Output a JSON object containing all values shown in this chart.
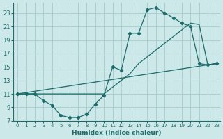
{
  "xlabel": "Humidex (Indice chaleur)",
  "bg_color": "#cce8e8",
  "grid_color": "#aacece",
  "line_color": "#1a6b6b",
  "xlim_min": -0.5,
  "xlim_max": 23.4,
  "ylim_min": 7,
  "ylim_max": 24.5,
  "xticks": [
    0,
    1,
    2,
    3,
    4,
    5,
    6,
    7,
    8,
    9,
    10,
    11,
    12,
    13,
    14,
    15,
    16,
    17,
    18,
    19,
    20,
    21,
    22,
    23
  ],
  "yticks": [
    7,
    9,
    11,
    13,
    15,
    17,
    19,
    21,
    23
  ],
  "line1_x": [
    0,
    1,
    2,
    3,
    4,
    5,
    6,
    7,
    8,
    9,
    10,
    11,
    12,
    13,
    14,
    15,
    16,
    17,
    18,
    19,
    20,
    21,
    22,
    23
  ],
  "line1_y": [
    11,
    11,
    11,
    10,
    9.3,
    7.8,
    7.5,
    7.5,
    8.0,
    9.5,
    10.8,
    15,
    14.5,
    20,
    20,
    23.5,
    23.8,
    23,
    22.3,
    21.5,
    21,
    15.5,
    15.3,
    15.5
  ],
  "line2_x": [
    0,
    22,
    23
  ],
  "line2_y": [
    11,
    15.3,
    15.5
  ],
  "line3_x": [
    0,
    10,
    11,
    12,
    13,
    14,
    15,
    16,
    17,
    18,
    19,
    20,
    21,
    22,
    23
  ],
  "line3_y": [
    11,
    11,
    12,
    13,
    14,
    15.5,
    16.5,
    17.5,
    18.5,
    19.5,
    20.5,
    21.5,
    21.3,
    15.3,
    15.5
  ]
}
